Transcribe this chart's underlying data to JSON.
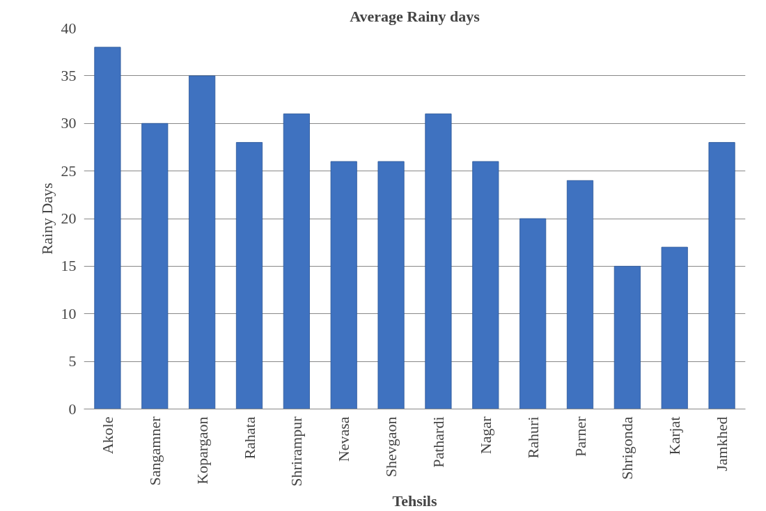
{
  "chart_data": {
    "type": "bar",
    "title": "Average Rainy days",
    "xlabel": "Tehsils",
    "ylabel": "Rainy Days",
    "categories": [
      "Akole",
      "Sangamner",
      "Kopargaon",
      "Rahata",
      "Shrirampur",
      "Nevasa",
      "Shevgaon",
      "Pathardi",
      "Nagar",
      "Rahuri",
      "Parner",
      "Shrigonda",
      "Karjat",
      "Jamkhed"
    ],
    "values": [
      38,
      30,
      35,
      28,
      31,
      26,
      26,
      31,
      26,
      20,
      24,
      15,
      17,
      28
    ],
    "color": "#3f72c0",
    "ylim": [
      0,
      40
    ],
    "yticks": [
      0,
      5,
      10,
      15,
      20,
      25,
      30,
      35,
      40
    ],
    "grid": "y"
  }
}
